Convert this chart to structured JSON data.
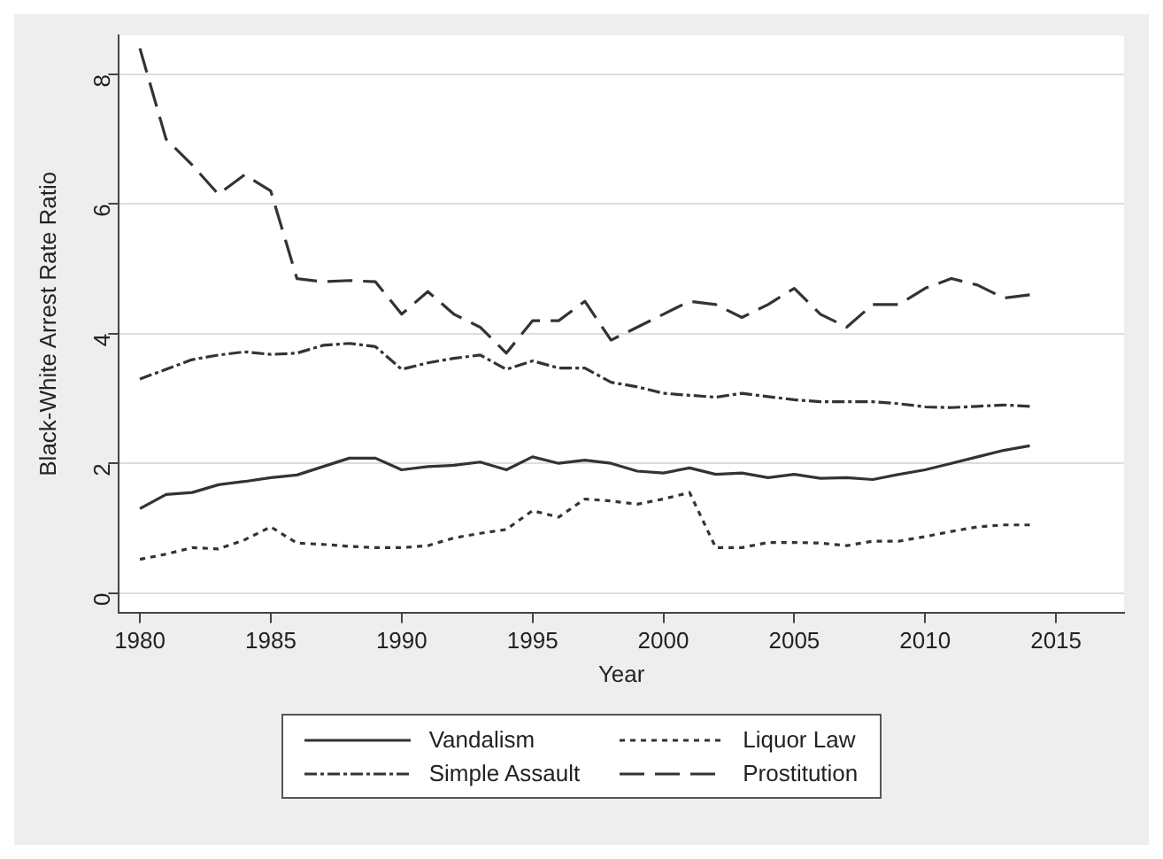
{
  "chart_data": {
    "type": "line",
    "xlabel": "Year",
    "ylabel": "Black-White Arrest Rate Ratio",
    "x": [
      1980,
      1981,
      1982,
      1983,
      1984,
      1985,
      1986,
      1987,
      1988,
      1989,
      1990,
      1991,
      1992,
      1993,
      1994,
      1995,
      1996,
      1997,
      1998,
      1999,
      2000,
      2001,
      2002,
      2003,
      2004,
      2005,
      2006,
      2007,
      2008,
      2009,
      2010,
      2011,
      2012,
      2013,
      2014
    ],
    "series": [
      {
        "name": "Vandalism",
        "color": "#333333",
        "line_style": "solid",
        "values": [
          1.3,
          1.52,
          1.55,
          1.67,
          1.72,
          1.78,
          1.82,
          1.95,
          2.08,
          2.08,
          1.9,
          1.95,
          1.97,
          2.02,
          1.9,
          2.1,
          2.0,
          2.05,
          2.0,
          1.88,
          1.85,
          1.93,
          1.83,
          1.85,
          1.78,
          1.83,
          1.77,
          1.78,
          1.75,
          1.83,
          1.9,
          2.0,
          2.1,
          2.2,
          2.27
        ]
      },
      {
        "name": "Liquor Law",
        "color": "#333333",
        "line_style": "dotted",
        "values": [
          0.52,
          0.6,
          0.7,
          0.68,
          0.82,
          1.02,
          0.77,
          0.75,
          0.72,
          0.7,
          0.7,
          0.73,
          0.85,
          0.92,
          0.98,
          1.27,
          1.17,
          1.45,
          1.42,
          1.37,
          1.45,
          1.55,
          0.7,
          0.7,
          0.78,
          0.78,
          0.77,
          0.73,
          0.8,
          0.8,
          0.87,
          0.95,
          1.02,
          1.05,
          1.05
        ]
      },
      {
        "name": "Simple Assault",
        "color": "#333333",
        "line_style": "dashdot",
        "values": [
          3.3,
          3.45,
          3.6,
          3.67,
          3.72,
          3.68,
          3.7,
          3.82,
          3.85,
          3.8,
          3.45,
          3.55,
          3.62,
          3.67,
          3.45,
          3.58,
          3.47,
          3.47,
          3.25,
          3.18,
          3.08,
          3.05,
          3.02,
          3.08,
          3.03,
          2.98,
          2.95,
          2.95,
          2.95,
          2.92,
          2.87,
          2.86,
          2.88,
          2.9,
          2.88
        ]
      },
      {
        "name": "Prostitution",
        "color": "#333333",
        "line_style": "dashed",
        "values": [
          8.4,
          7.0,
          6.6,
          6.15,
          6.45,
          6.2,
          4.85,
          4.8,
          4.82,
          4.8,
          4.3,
          4.65,
          4.3,
          4.1,
          3.7,
          4.2,
          4.2,
          4.5,
          3.9,
          4.1,
          4.3,
          4.5,
          4.45,
          4.25,
          4.45,
          4.7,
          4.3,
          4.1,
          4.45,
          4.45,
          4.7,
          4.85,
          4.75,
          4.55,
          4.6
        ]
      }
    ],
    "xlim": [
      1979.2,
      2017.6
    ],
    "xticks": [
      1980,
      1985,
      1990,
      1995,
      2000,
      2005,
      2010,
      2015
    ],
    "ylim": [
      -0.3,
      8.6
    ],
    "yticks": [
      0,
      2,
      4,
      6,
      8
    ],
    "grid": "y",
    "legend": "bottom",
    "marker": "none"
  }
}
